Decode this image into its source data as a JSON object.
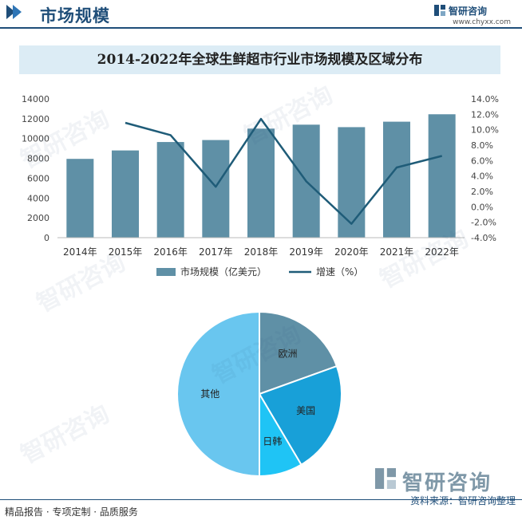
{
  "header": {
    "title": "市场规模"
  },
  "logo": {
    "name": "智研咨询",
    "url": "www.chyxx.com"
  },
  "chart_title": "2014-2022年全球生鲜超市行业市场规模及区域分布",
  "chart_data": [
    {
      "type": "bar+line",
      "categories": [
        "2014年",
        "2015年",
        "2016年",
        "2017年",
        "2018年",
        "2019年",
        "2020年",
        "2021年",
        "2022年"
      ],
      "series": [
        {
          "name": "市场规模（亿美元）",
          "type": "bar",
          "axis": "left",
          "color": "#5f90a6",
          "values": [
            7950,
            8800,
            9650,
            9850,
            11000,
            11400,
            11150,
            11700,
            12450
          ]
        },
        {
          "name": "增速（%）",
          "type": "line",
          "axis": "right",
          "color": "#1f5c78",
          "values": [
            null,
            10.9,
            9.3,
            2.6,
            11.4,
            3.3,
            -2.2,
            5.1,
            6.6
          ]
        }
      ],
      "yleft": {
        "ticks": [
          "0",
          "2000",
          "4000",
          "6000",
          "8000",
          "10000",
          "12000",
          "14000"
        ],
        "ylim": [
          0,
          14000
        ]
      },
      "yright": {
        "ticks": [
          "-4.0%",
          "-2.0%",
          "0.0%",
          "2.0%",
          "4.0%",
          "6.0%",
          "8.0%",
          "10.0%",
          "12.0%",
          "14.0%"
        ],
        "ylim": [
          -4,
          14
        ]
      },
      "legend": {
        "position": "bottom"
      }
    },
    {
      "type": "pie",
      "slices": [
        {
          "label": "欧洲",
          "value": 19.5,
          "color": "#5f90a6"
        },
        {
          "label": "美国",
          "value": 22.0,
          "color": "#18a0d8"
        },
        {
          "label": "日韩",
          "value": 8.5,
          "color": "#1fc4f5"
        },
        {
          "label": "其他",
          "value": 50.0,
          "color": "#69c6ef"
        }
      ]
    }
  ],
  "source": "资料来源：智研咨询整理",
  "footer": "精品报告 · 专项定制 · 品质服务",
  "watermark": "智研咨询"
}
